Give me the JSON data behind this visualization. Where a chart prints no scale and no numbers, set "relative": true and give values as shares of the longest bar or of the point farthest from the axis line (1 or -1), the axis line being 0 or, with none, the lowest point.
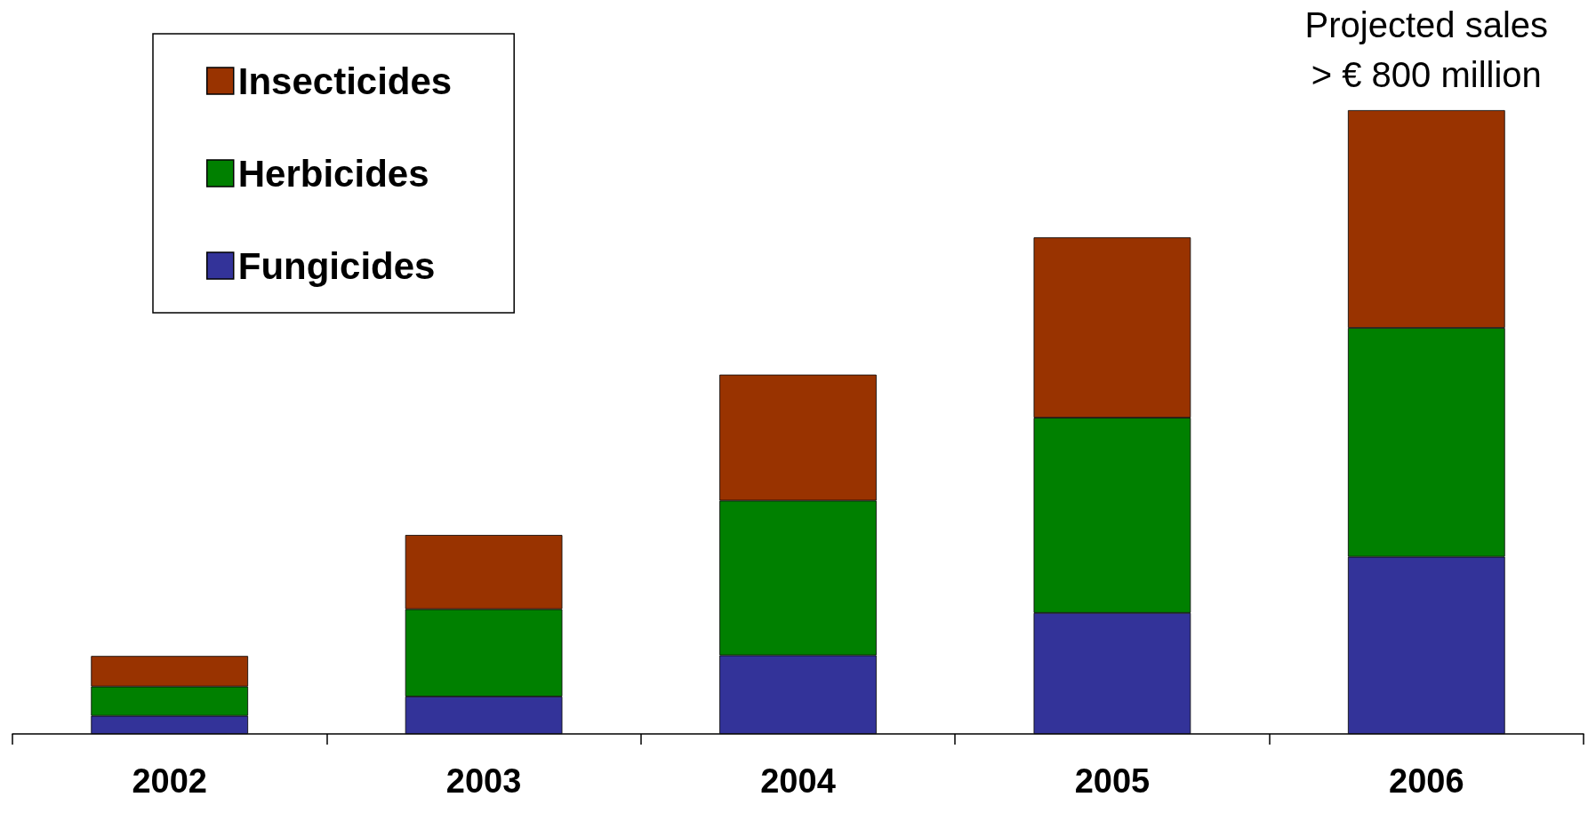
{
  "chart_data": {
    "type": "bar",
    "stacked": true,
    "relative": true,
    "legend": "top left",
    "categories": [
      "2002",
      "2003",
      "2004",
      "2005",
      "2006"
    ],
    "series": [
      {
        "name": "Fungicides",
        "color": "#333399",
        "values": [
          0.029,
          0.06,
          0.126,
          0.194,
          0.284
        ]
      },
      {
        "name": "Herbicides",
        "color": "#008000",
        "values": [
          0.047,
          0.14,
          0.248,
          0.313,
          0.367
        ]
      },
      {
        "name": "Insecticides",
        "color": "#993300",
        "values": [
          0.049,
          0.119,
          0.202,
          0.289,
          0.349
        ]
      }
    ],
    "annotations": [
      {
        "text": "Projected sales\n> € 800 million",
        "x": "2006",
        "y": 1
      }
    ]
  }
}
